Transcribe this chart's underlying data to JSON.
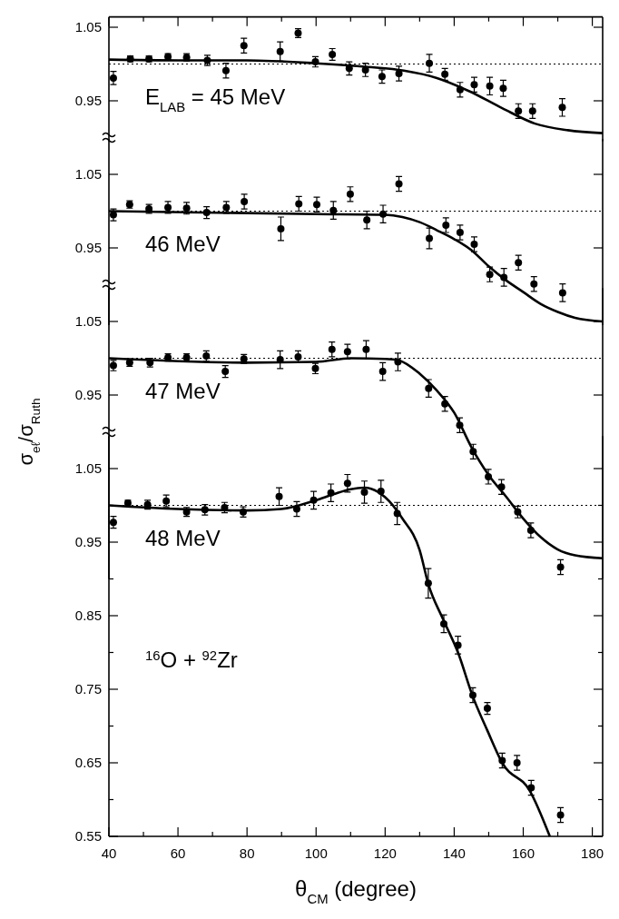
{
  "chart_data": [
    {
      "type": "scatter",
      "xlim": [
        40,
        183
      ],
      "xticks": [
        {
          "value": 40,
          "label": null
        },
        {
          "value": 50,
          "label": null
        },
        {
          "value": 60,
          "label": null
        },
        {
          "value": 70,
          "label": null
        },
        {
          "value": 80,
          "label": null
        },
        {
          "value": 90,
          "label": null
        },
        {
          "value": 100,
          "label": null
        },
        {
          "value": 110,
          "label": null
        },
        {
          "value": 120,
          "label": null
        },
        {
          "value": 130,
          "label": null
        },
        {
          "value": 140,
          "label": null
        },
        {
          "value": 150,
          "label": null
        },
        {
          "value": 160,
          "label": null
        },
        {
          "value": 170,
          "label": null
        },
        {
          "value": 180,
          "label": null
        }
      ],
      "ylim": [
        0.895,
        1.064
      ],
      "yticks": [
        0.95,
        1.05
      ],
      "tick_labels": "y",
      "annotations": [
        "E$_{LAB}$ = 45 MeV"
      ],
      "ref_lines": [
        {
          "axis": "y",
          "value": 1.0,
          "line_style": "dotted",
          "color": "#000000"
        }
      ],
      "series": [
        {
          "type": "scatter",
          "color": "#000000",
          "marker": "circle",
          "x": [
            41.3,
            46.2,
            51.6,
            57.1,
            62.5,
            68.5,
            73.9,
            79.1,
            89.6,
            94.8,
            99.8,
            104.7,
            109.6,
            114.3,
            119.1,
            124.0,
            132.8,
            137.3,
            141.7,
            145.8,
            150.3,
            154.2,
            158.6,
            162.7,
            171.3
          ],
          "values": [
            0.981,
            1.007,
            1.007,
            1.01,
            1.009,
            1.005,
            0.991,
            1.025,
            1.017,
            1.042,
            1.003,
            1.013,
            0.994,
            0.992,
            0.983,
            0.987,
            1.001,
            0.986,
            0.965,
            0.972,
            0.97,
            0.967,
            0.936,
            0.936,
            0.941
          ],
          "errors": [
            0.009,
            0.004,
            0.004,
            0.004,
            0.005,
            0.007,
            0.01,
            0.01,
            0.013,
            0.006,
            0.007,
            0.008,
            0.009,
            0.009,
            0.009,
            0.01,
            0.012,
            0.008,
            0.01,
            0.01,
            0.012,
            0.011,
            0.01,
            0.01,
            0.012
          ]
        },
        {
          "type": "line",
          "color": "#000000",
          "marker": "none",
          "line_style": "solid",
          "x": [
            40,
            60,
            80,
            100,
            115,
            125.4,
            135,
            144.4,
            153.9,
            163.4,
            172.9,
            183
          ],
          "values": [
            1.006,
            1.005,
            1.005,
            1.001,
            0.996,
            0.991,
            0.981,
            0.963,
            0.94,
            0.919,
            0.91,
            0.906
          ]
        }
      ]
    },
    {
      "type": "scatter",
      "xlim": [
        40,
        183
      ],
      "ylim": [
        0.845,
        1.098
      ],
      "yticks": [
        0.95,
        1.05
      ],
      "tick_labels": "y",
      "annotations": [
        "46 MeV"
      ],
      "ref_lines": [
        {
          "axis": "y",
          "value": 1.0,
          "line_style": "dotted",
          "color": "#000000"
        }
      ],
      "series": [
        {
          "type": "scatter",
          "color": "#000000",
          "marker": "circle",
          "x": [
            41.3,
            46.0,
            51.6,
            57.1,
            62.5,
            68.3,
            74.0,
            79.2,
            89.8,
            95.0,
            100.2,
            105.0,
            109.9,
            114.7,
            119.4,
            124.0,
            132.8,
            137.6,
            141.7,
            145.8,
            150.3,
            154.4,
            158.6,
            163.1,
            171.4
          ],
          "values": [
            0.995,
            1.009,
            1.003,
            1.005,
            1.004,
            0.998,
            1.005,
            1.013,
            0.976,
            1.01,
            1.009,
            1.001,
            1.023,
            0.988,
            0.996,
            1.037,
            0.963,
            0.981,
            0.971,
            0.955,
            0.914,
            0.91,
            0.93,
            0.901,
            0.889
          ],
          "errors": [
            0.008,
            0.005,
            0.006,
            0.008,
            0.008,
            0.008,
            0.008,
            0.01,
            0.016,
            0.01,
            0.01,
            0.012,
            0.01,
            0.012,
            0.012,
            0.01,
            0.014,
            0.01,
            0.01,
            0.01,
            0.01,
            0.012,
            0.01,
            0.01,
            0.012
          ]
        },
        {
          "type": "line",
          "color": "#000000",
          "marker": "none",
          "line_style": "solid",
          "x": [
            40,
            100,
            120,
            125,
            130,
            135,
            140,
            145,
            150,
            155,
            160,
            165,
            170,
            175,
            183
          ],
          "values": [
            1.0,
            0.996,
            0.995,
            0.992,
            0.985,
            0.974,
            0.962,
            0.947,
            0.925,
            0.906,
            0.89,
            0.874,
            0.863,
            0.855,
            0.85
          ]
        }
      ]
    },
    {
      "type": "scatter",
      "xlim": [
        40,
        183
      ],
      "ylim": [
        0.7,
        1.095
      ],
      "yticks": [
        0.95,
        1.05
      ],
      "tick_labels": "y",
      "annotations": [
        "47 MeV"
      ],
      "ref_lines": [
        {
          "axis": "y",
          "value": 1.0,
          "line_style": "dotted",
          "color": "#000000"
        }
      ],
      "series": [
        {
          "type": "scatter",
          "color": "#000000",
          "marker": "circle",
          "x": [
            41.3,
            46.0,
            51.9,
            57.1,
            62.5,
            68.2,
            73.7,
            79.1,
            89.6,
            94.8,
            99.8,
            104.6,
            109.1,
            114.5,
            119.3,
            123.7,
            132.6,
            137.3,
            141.6,
            145.5,
            149.9,
            153.7,
            158.4,
            162.2,
            170.8
          ],
          "values": [
            0.99,
            0.994,
            0.994,
            1.001,
            1.001,
            1.003,
            0.982,
            0.999,
            0.998,
            1.002,
            0.986,
            1.012,
            1.009,
            1.012,
            0.982,
            0.995,
            0.959,
            0.938,
            0.909,
            0.873,
            0.839,
            0.825,
            0.791,
            0.766,
            0.716
          ],
          "errors": [
            0.007,
            0.005,
            0.006,
            0.005,
            0.005,
            0.007,
            0.008,
            0.006,
            0.012,
            0.008,
            0.007,
            0.01,
            0.01,
            0.012,
            0.012,
            0.012,
            0.012,
            0.01,
            0.01,
            0.01,
            0.01,
            0.01,
            0.008,
            0.01,
            0.01
          ]
        },
        {
          "type": "line",
          "color": "#000000",
          "marker": "none",
          "line_style": "solid",
          "x": [
            40,
            80,
            100,
            110,
            120,
            124,
            130,
            135,
            140,
            145,
            150,
            155,
            160,
            165,
            170,
            175,
            183
          ],
          "values": [
            1.0,
            0.994,
            0.995,
            1.0,
            0.999,
            0.997,
            0.979,
            0.956,
            0.926,
            0.879,
            0.841,
            0.812,
            0.782,
            0.757,
            0.74,
            0.732,
            0.728
          ]
        }
      ]
    },
    {
      "type": "scatter",
      "xlim": [
        40,
        183
      ],
      "xticks": [
        40,
        {
          "value": 50,
          "label": null
        },
        60,
        {
          "value": 70,
          "label": null
        },
        80,
        {
          "value": 90,
          "label": null
        },
        100,
        {
          "value": 110,
          "label": null
        },
        120,
        {
          "value": 130,
          "label": null
        },
        140,
        {
          "value": 150,
          "label": null
        },
        160,
        {
          "value": 170,
          "label": null
        },
        180
      ],
      "ylim": [
        0.55,
        1.094
      ],
      "yticks": [
        0.55,
        {
          "value": 0.6,
          "label": null
        },
        0.65,
        {
          "value": 0.7,
          "label": null
        },
        0.75,
        {
          "value": 0.8,
          "label": null
        },
        0.85,
        {
          "value": 0.9,
          "label": null
        },
        0.95,
        {
          "value": 1.0,
          "label": null
        },
        1.05
      ],
      "xlabel": "θ$_{CM}$ (degree)",
      "ylabel": "σ$_{eℓ}$/σ$_{Ruth}$",
      "annotations": [
        "48 MeV",
        "$^{16}$O + $^{92}$Zr"
      ],
      "ref_lines": [
        {
          "axis": "y",
          "value": 1.0,
          "line_style": "dotted",
          "color": "#000000"
        }
      ],
      "series": [
        {
          "type": "scatter",
          "color": "#000000",
          "marker": "circle",
          "x": [
            41.3,
            45.5,
            51.2,
            56.6,
            62.5,
            67.8,
            73.5,
            78.9,
            89.3,
            94.4,
            99.3,
            104.3,
            109.1,
            114.0,
            118.8,
            123.5,
            132.5,
            137.0,
            141.1,
            145.4,
            149.6,
            153.9,
            158.2,
            162.3,
            170.8
          ],
          "values": [
            0.977,
            1.003,
            1.001,
            1.006,
            0.991,
            0.994,
            0.997,
            0.991,
            1.012,
            0.995,
            1.007,
            1.017,
            1.03,
            1.018,
            1.019,
            0.989,
            0.894,
            0.839,
            0.81,
            0.742,
            0.724,
            0.653,
            0.65,
            0.616,
            0.579
          ],
          "errors": [
            0.008,
            0.004,
            0.006,
            0.008,
            0.006,
            0.007,
            0.007,
            0.007,
            0.012,
            0.01,
            0.012,
            0.012,
            0.012,
            0.015,
            0.015,
            0.015,
            0.02,
            0.012,
            0.012,
            0.01,
            0.008,
            0.01,
            0.01,
            0.01,
            0.01
          ]
        },
        {
          "type": "line",
          "color": "#000000",
          "marker": "none",
          "line_style": "solid",
          "x": [
            40,
            60,
            80,
            90,
            100,
            105,
            110,
            114,
            118,
            120,
            125,
            130,
            132.5,
            136.8,
            141.1,
            145.4,
            149.6,
            153.9,
            161.9,
            167.7
          ],
          "values": [
            1.0,
            0.995,
            0.993,
            0.995,
            1.007,
            1.015,
            1.022,
            1.024,
            1.018,
            1.011,
            0.982,
            0.939,
            0.893,
            0.845,
            0.8,
            0.74,
            0.694,
            0.65,
            0.612,
            0.55
          ]
        }
      ]
    }
  ]
}
